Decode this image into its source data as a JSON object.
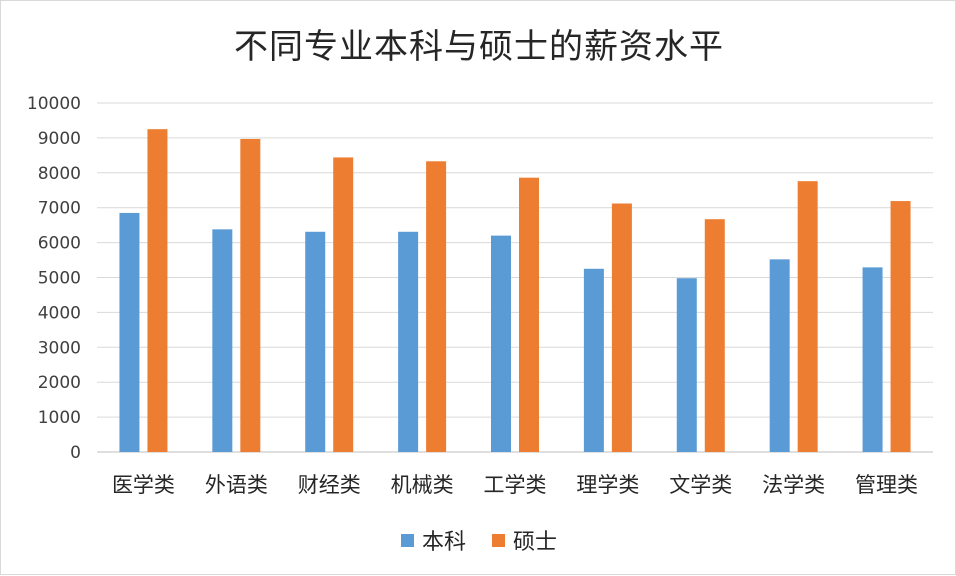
{
  "chart_data": {
    "type": "bar",
    "title": "不同专业本科与硕士的薪资水平",
    "categories": [
      "医学类",
      "外语类",
      "财经类",
      "机械类",
      "工学类",
      "理学类",
      "文学类",
      "法学类",
      "管理类"
    ],
    "series": [
      {
        "name": "本科",
        "color": "#5b9bd5",
        "values": [
          6850,
          6380,
          6310,
          6310,
          6200,
          5250,
          4980,
          5520,
          5290
        ]
      },
      {
        "name": "硕士",
        "color": "#ed7d31",
        "values": [
          9250,
          8970,
          8440,
          8330,
          7860,
          7120,
          6670,
          7760,
          7190
        ]
      }
    ],
    "ylim": [
      0,
      10000
    ],
    "yticks": [
      "0",
      "1000",
      "2000",
      "3000",
      "4000",
      "5000",
      "6000",
      "7000",
      "8000",
      "9000",
      "10000"
    ],
    "grid": true,
    "legend_position": "bottom"
  }
}
